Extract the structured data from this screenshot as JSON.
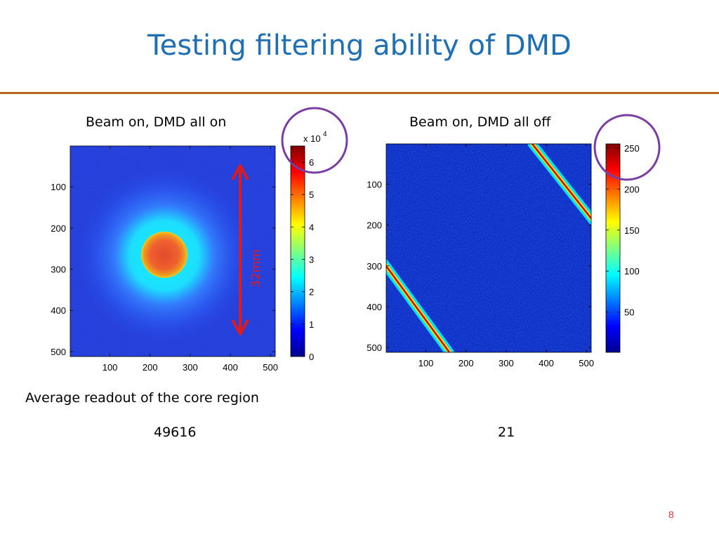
{
  "slide": {
    "title": "Testing filtering ability of DMD",
    "page_number": "8"
  },
  "colors": {
    "title": "#1f6fb2",
    "rule": "#b5651d",
    "highlight_circle": "#7a3ea3",
    "annotation": "#e01b1b",
    "heatmap_background": "#1a35d6"
  },
  "panels": [
    {
      "caption": "Beam on, DMD all on",
      "colorbar": {
        "exponent_label": "x 10",
        "exponent": "4",
        "ticks": [
          "0",
          "1",
          "2",
          "3",
          "4",
          "5",
          "6"
        ]
      },
      "annotation": "32mm"
    },
    {
      "caption": "Beam on, DMD all off",
      "colorbar": {
        "ticks": [
          "50",
          "100",
          "150",
          "200",
          "250"
        ]
      }
    }
  ],
  "readout": {
    "label": "Average readout of the core region",
    "values": [
      "49616",
      "21"
    ]
  },
  "chart_data": [
    {
      "type": "heatmap",
      "title": "Beam on, DMD all on",
      "x_ticks": [
        100,
        200,
        300,
        400,
        500
      ],
      "y_ticks": [
        100,
        200,
        300,
        400,
        500
      ],
      "xlim": [
        1,
        512
      ],
      "ylim": [
        1,
        512
      ],
      "y_reversed": true,
      "colorbar": {
        "min": 0,
        "max": 65000,
        "scale_factor": "x 10^4",
        "ticks": [
          0,
          1,
          2,
          3,
          4,
          5,
          6
        ]
      },
      "colormap": "jet",
      "features": [
        {
          "kind": "disk",
          "center": [
            235,
            265
          ],
          "core_radius": 55,
          "halo_radius": 105
        }
      ]
    },
    {
      "type": "heatmap",
      "title": "Beam on, DMD all off",
      "x_ticks": [
        100,
        200,
        300,
        400,
        500
      ],
      "y_ticks": [
        100,
        200,
        300,
        400,
        500
      ],
      "xlim": [
        1,
        512
      ],
      "ylim": [
        1,
        512
      ],
      "y_reversed": true,
      "colorbar": {
        "min": 1,
        "max": 255,
        "ticks": [
          50,
          100,
          150,
          200,
          250
        ]
      },
      "colormap": "jet",
      "features": [
        {
          "kind": "line",
          "from": [
            365,
            0
          ],
          "to": [
            512,
            190
          ]
        },
        {
          "kind": "line",
          "from": [
            0,
            300
          ],
          "to": [
            155,
            512
          ]
        }
      ]
    }
  ]
}
